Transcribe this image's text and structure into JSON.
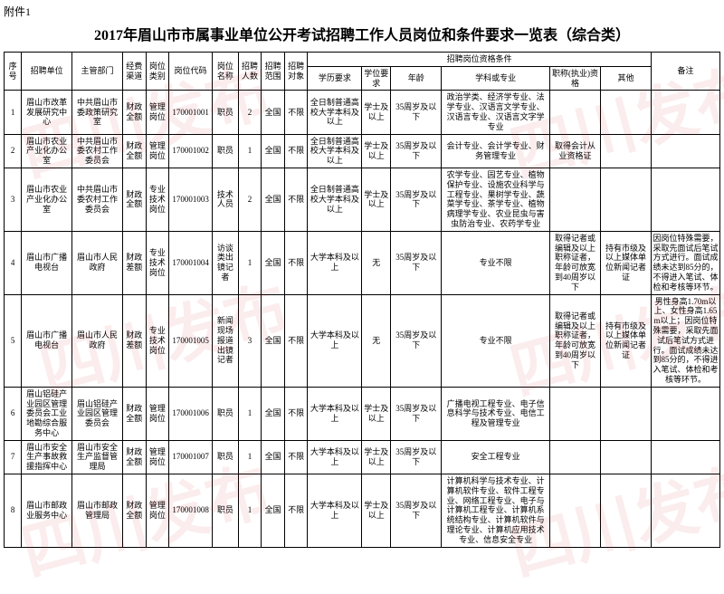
{
  "attachment": "附件1",
  "title": "2017年眉山市市属事业单位公开考试招聘工作人员岗位和条件要求一览表（综合类）",
  "watermark": "四川发布",
  "headers": [
    "序号",
    "招聘单位",
    "主管部门",
    "经费渠道",
    "岗位类别",
    "岗位代码",
    "岗位名称",
    "招聘人数",
    "招聘范围",
    "招聘对象",
    "招聘岗位资格条件",
    "备注"
  ],
  "subheaders": [
    "学历要求",
    "学位要求",
    "年龄",
    "学科或专业",
    "职称(执业)资格",
    "其他"
  ],
  "rows": [
    {
      "seq": "1",
      "unit": "眉山市改革发展研究中心",
      "dept": "中共眉山市委政策研究室",
      "fund": "财政全额",
      "postcat": "管理岗位",
      "code": "170001001",
      "postname": "职员",
      "count": "2",
      "scope": "全国",
      "target": "不限",
      "edu": "全日制普通高校大学本科及以上",
      "degree": "学士及以上",
      "age": "35周岁及以下",
      "major": "政治学类、经济学专业、法学专业、汉语言文学专业、汉语言专业、汉语言文字学专业",
      "cert": "",
      "other": "",
      "remark": ""
    },
    {
      "seq": "2",
      "unit": "眉山市农业产业化办公室",
      "dept": "中共眉山市委农村工作委员会",
      "fund": "财政全额",
      "postcat": "管理岗位",
      "code": "170001002",
      "postname": "职员",
      "count": "1",
      "scope": "全国",
      "target": "不限",
      "edu": "全日制普通高校大学本科及以上",
      "degree": "学士及以上",
      "age": "35周岁及以下",
      "major": "会计专业、会计学专业、财务管理专业",
      "cert": "取得会计从业资格证",
      "other": "",
      "remark": ""
    },
    {
      "seq": "3",
      "unit": "眉山市农业产业化办公室",
      "dept": "中共眉山市委农村工作委员会",
      "fund": "财政全额",
      "postcat": "专业技术岗位",
      "code": "170001003",
      "postname": "技术人员",
      "count": "2",
      "scope": "全国",
      "target": "不限",
      "edu": "全日制普通高校大学本科及以上",
      "degree": "学士及以上",
      "age": "35周岁及以下",
      "major": "农学专业、园艺专业、植物保护专业、设施农业科学与工程专业、果树学专业、蔬菜学专业、茶学专业、植物病理学专业、农业昆虫与害虫防治专业、农药学专业",
      "cert": "",
      "other": "",
      "remark": ""
    },
    {
      "seq": "4",
      "unit": "眉山市广播电视台",
      "dept": "眉山市人民政府",
      "fund": "财政差额",
      "postcat": "专业技术岗位",
      "code": "170001004",
      "postname": "访谈类出镜记者",
      "count": "1",
      "scope": "全国",
      "target": "不限",
      "edu": "大学本科及以上",
      "degree": "无",
      "age": "35周岁及以下",
      "major": "专业不限",
      "cert": "取得记者或编辑及以上职称证者，年龄可放宽到40周岁以下",
      "other": "持有市级及以上媒体单位新闻记者证",
      "remark": "因岗位特殊需要，采取先面试后笔试方式进行。面试成绩未达到85分的，不得进入笔试、体检和考核等环节。"
    },
    {
      "seq": "5",
      "unit": "眉山市广播电视台",
      "dept": "眉山市人民政府",
      "fund": "财政差额",
      "postcat": "专业技术岗位",
      "code": "170001005",
      "postname": "新闻现场报道出镜记者",
      "count": "3",
      "scope": "全国",
      "target": "不限",
      "edu": "大学本科及以上",
      "degree": "无",
      "age": "35周岁及以下",
      "major": "专业不限",
      "cert": "取得记者或编辑及以上职称证者，年龄可放宽到40周岁以下",
      "other": "持有市级及以上媒体单位新闻记者证",
      "remark": "男性身高1.70m以上、女性身高1.65m以上；因岗位特殊需要，采取先面试后笔试方式进行。面试成绩未达到85分的，不得进入笔试、体检和考核等环节。"
    },
    {
      "seq": "6",
      "unit": "眉山铝硅产业园区管理委员会工业地勘综合服务中心",
      "dept": "眉山铝硅产业园区管理委员会",
      "fund": "财政全额",
      "postcat": "管理岗位",
      "code": "170001006",
      "postname": "职员",
      "count": "1",
      "scope": "全国",
      "target": "不限",
      "edu": "大学本科及以上",
      "degree": "学士及以上",
      "age": "35周岁及以下",
      "major": "广播电视工程专业、电子信息科学与技术专业、电信工程及管理专业",
      "cert": "",
      "other": "",
      "remark": ""
    },
    {
      "seq": "7",
      "unit": "眉山市安全生产事故救援指挥中心",
      "dept": "眉山市安全生产监督管理局",
      "fund": "财政全额",
      "postcat": "管理岗位",
      "code": "170001007",
      "postname": "职员",
      "count": "1",
      "scope": "全国",
      "target": "不限",
      "edu": "大学本科及以上",
      "degree": "学士及以上",
      "age": "35周岁及以下",
      "major": "安全工程专业",
      "cert": "",
      "other": "",
      "remark": ""
    },
    {
      "seq": "8",
      "unit": "眉山市邮政业服务中心",
      "dept": "眉山市邮政管理局",
      "fund": "财政全额",
      "postcat": "管理岗位",
      "code": "170001008",
      "postname": "职员",
      "count": "1",
      "scope": "全国",
      "target": "不限",
      "edu": "大学本科及以上",
      "degree": "学士及以上",
      "age": "35周岁及以下",
      "major": "计算机科学与技术专业、计算机软件专业、软件工程专业、网络工程专业、电子与计算机工程专业、计算机系统结构专业、计算机软件与理论专业、计算机应用技术专业、信息安全专业",
      "cert": "",
      "other": "",
      "remark": ""
    }
  ]
}
